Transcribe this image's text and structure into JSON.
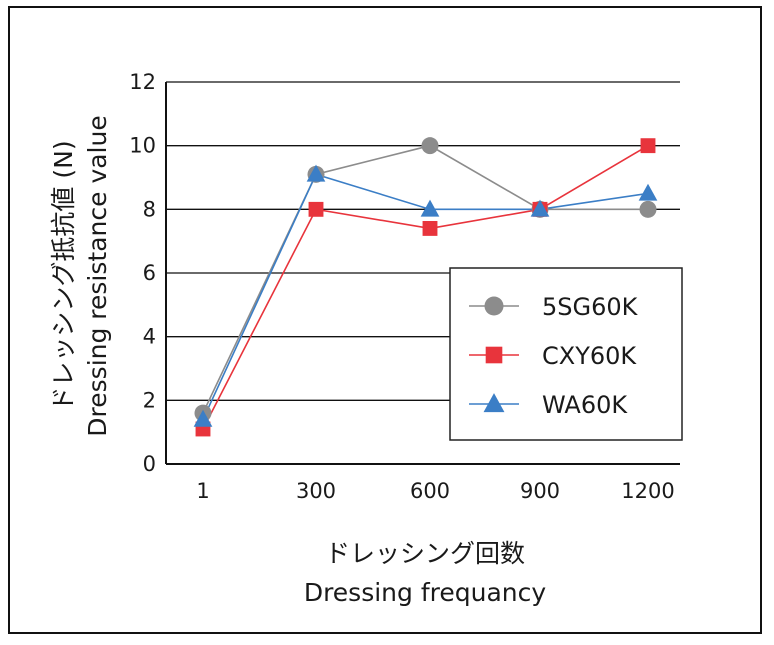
{
  "chart_data": {
    "type": "line",
    "xlabel_jp": "ドレッシング回数",
    "xlabel_en": "Dressing frequancy",
    "ylabel_jp": "ドレッシング抵抗値 (N)",
    "ylabel_en": "Dressing resistance value",
    "categories": [
      "1",
      "300",
      "600",
      "900",
      "1200"
    ],
    "yticks": [
      "0",
      "2",
      "4",
      "6",
      "8",
      "10",
      "12"
    ],
    "ylim": [
      0,
      12
    ],
    "grid": true,
    "legend_position": "center-right",
    "series": [
      {
        "name": "5SG60K",
        "color": "#8c8c8c",
        "marker": "circle",
        "values": [
          1.6,
          9.1,
          10.0,
          8.0,
          8.0
        ]
      },
      {
        "name": "CXY60K",
        "color": "#e8343c",
        "marker": "square",
        "values": [
          1.1,
          8.0,
          7.4,
          8.0,
          10.0
        ]
      },
      {
        "name": "WA60K",
        "color": "#3b7ec6",
        "marker": "triangle",
        "values": [
          1.4,
          9.1,
          8.0,
          8.0,
          8.5
        ]
      }
    ]
  }
}
